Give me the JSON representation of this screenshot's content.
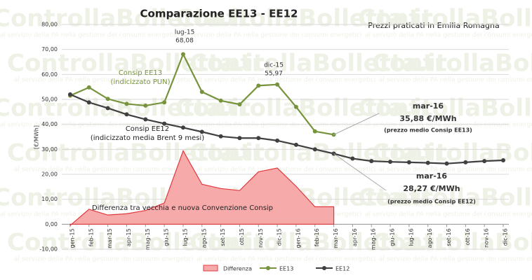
{
  "chart_data": {
    "type": "line",
    "title": "Comparazione EE13 - EE12",
    "subtitle": "Prezzi praticati in Emilia Romagna",
    "y_label": "[€/MWh]",
    "watermark": [
      "ControllaBolletta.it",
      "al servizio della PA nella gestione dei consumi energetici"
    ],
    "categories": [
      "gen-15",
      "feb-15",
      "mar-15",
      "apr-15",
      "mag-15",
      "giu-15",
      "lug-15",
      "ago-15",
      "set-15",
      "ott-15",
      "nov-15",
      "dic-15",
      "gen-16",
      "feb-16",
      "mar-16",
      "apr-16",
      "mag-16",
      "giu-16",
      "lug-16",
      "ago-16",
      "set-16",
      "ott-16",
      "nov-16",
      "dic-16"
    ],
    "series": [
      {
        "name": "Differenza",
        "type": "area",
        "color": "#e0393d",
        "fill": "#f7aaaa",
        "values": [
          -0.5,
          6,
          3.7,
          4.2,
          5.5,
          8.5,
          29.4,
          16,
          14.3,
          13.5,
          21,
          22.5,
          15.2,
          7,
          7,
          null,
          null,
          null,
          null,
          null,
          null,
          null,
          null,
          null
        ]
      },
      {
        "name": "EE13",
        "type": "line",
        "color": "#77933c",
        "values": [
          51.5,
          54.8,
          50.2,
          48.2,
          47.5,
          48.8,
          68.08,
          53,
          49.5,
          48,
          55.5,
          55.97,
          47,
          37.2,
          35.88,
          null,
          null,
          null,
          null,
          null,
          null,
          null,
          null,
          null
        ]
      },
      {
        "name": "EE12",
        "type": "line",
        "color": "#404040",
        "values": [
          52,
          48.8,
          46.5,
          44,
          42,
          40.3,
          38.7,
          37,
          35.2,
          34.5,
          34.5,
          33.5,
          31.8,
          30,
          28.27,
          26.3,
          25.3,
          25,
          24.8,
          24.6,
          24.3,
          24.8,
          25.3,
          25.6
        ]
      }
    ],
    "ylim": [
      -10,
      80
    ],
    "yticks": [
      {
        "value": -10,
        "label": "-10,00"
      },
      {
        "value": 0,
        "label": "0,00"
      },
      {
        "value": 10,
        "label": "10,00"
      },
      {
        "value": 20,
        "label": "20,00"
      },
      {
        "value": 30,
        "label": "30,00"
      },
      {
        "value": 40,
        "label": "40,00"
      },
      {
        "value": 50,
        "label": "50,00"
      },
      {
        "value": 60,
        "label": "60,00"
      },
      {
        "value": 70,
        "label": "70,00"
      },
      {
        "value": 80,
        "label": "80,00"
      }
    ],
    "grid": true,
    "legend": "bottom",
    "annotations": [
      "lug-15",
      "68,08",
      "dic-15",
      "55,97",
      "Consip EE13",
      "(indicizzato PUN)",
      "Consip EE12",
      "(indicizzato media Brent 9 mesi)",
      "mar-16",
      "35,88 €/MWh",
      "(prezzo medio Consip EE13)",
      "mar-16",
      "28,27 €/MWh",
      "(prezzo medio Consip EE12)",
      "Differenza tra vecchia e nuova Convenzione Consip"
    ]
  }
}
